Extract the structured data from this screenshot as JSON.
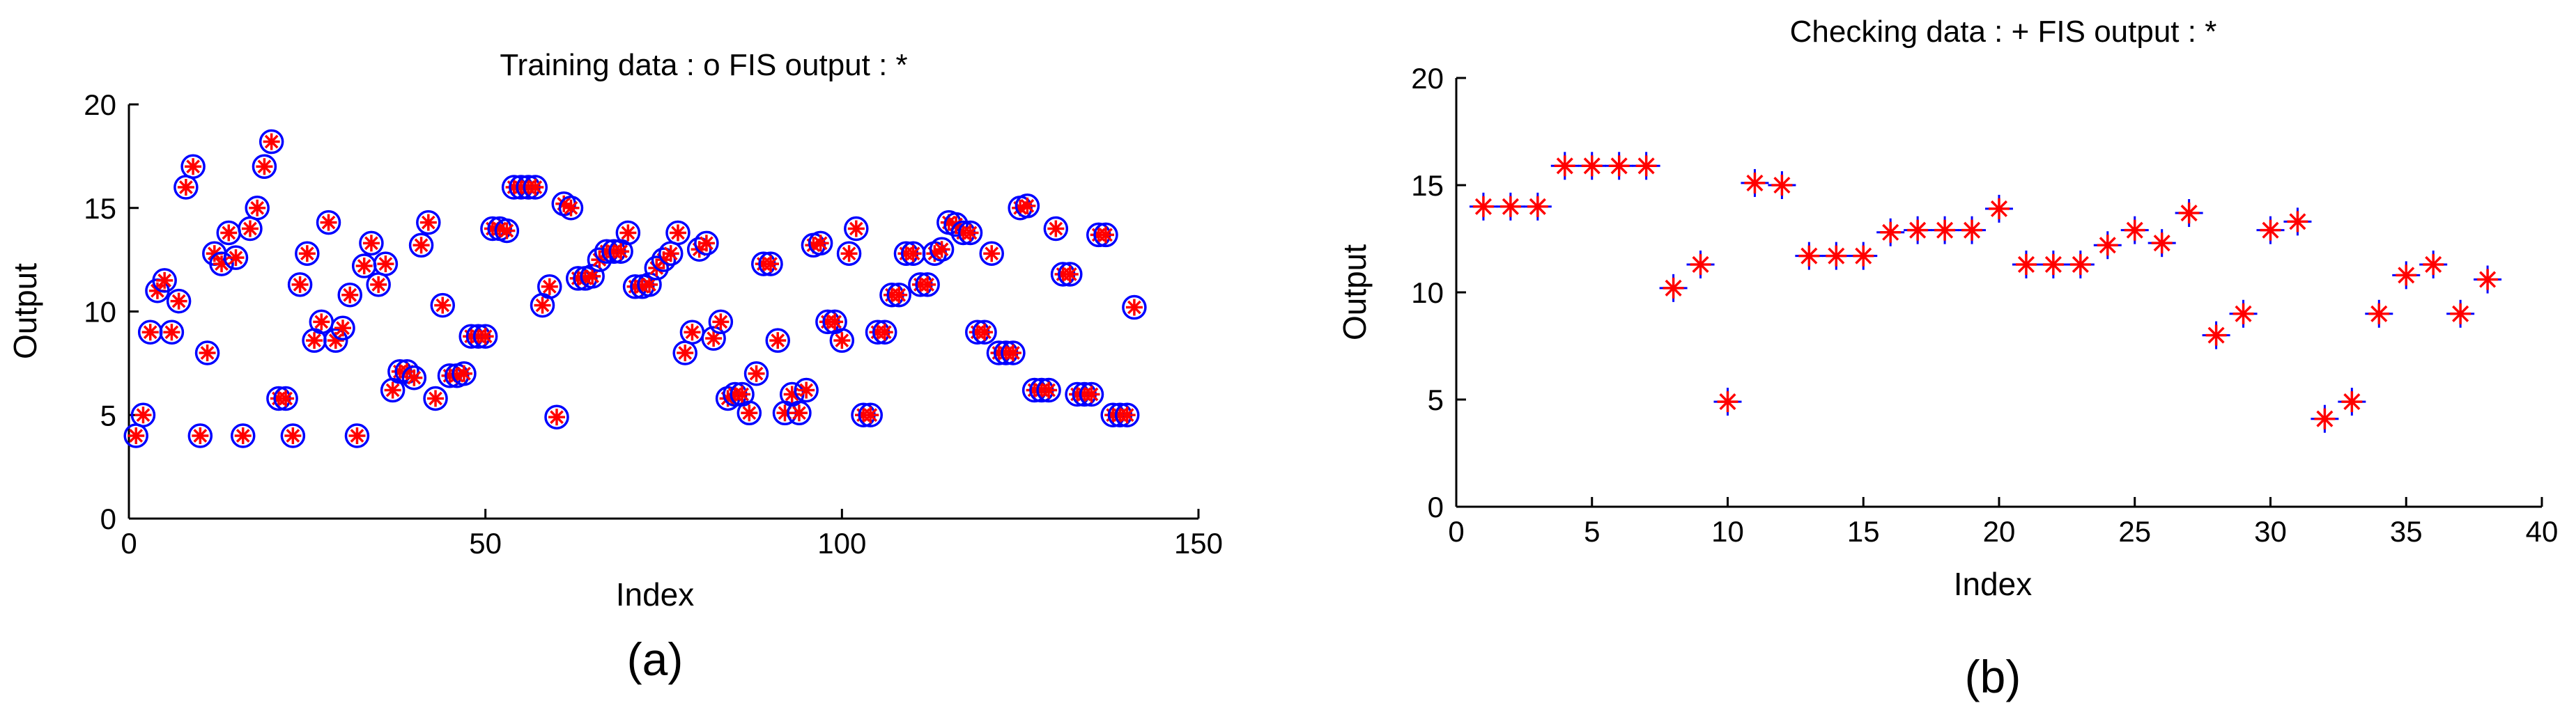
{
  "colors": {
    "training_marker": "#0000ff",
    "checking_marker": "#0000ff",
    "fis_marker": "#ff0000",
    "axis": "#000000",
    "background": "#ffffff"
  },
  "chart_data": [
    {
      "type": "scatter",
      "title": "Training data : o   FIS output : *",
      "xlabel": "Index",
      "ylabel": "Output",
      "caption": "(a)",
      "xlim": [
        0,
        150
      ],
      "ylim": [
        0,
        20
      ],
      "xticks": [
        "0",
        "50",
        "100",
        "150"
      ],
      "yticks": [
        "0",
        "5",
        "10",
        "15",
        "20"
      ],
      "grid": false,
      "series": [
        {
          "name": "Training data",
          "marker": "o"
        },
        {
          "name": "FIS output",
          "marker": "*"
        }
      ],
      "x": [
        1,
        2,
        3,
        4,
        5,
        6,
        7,
        8,
        9,
        10,
        11,
        12,
        13,
        14,
        15,
        16,
        17,
        18,
        19,
        20,
        21,
        22,
        23,
        24,
        25,
        26,
        27,
        28,
        29,
        30,
        31,
        32,
        33,
        34,
        35,
        36,
        37,
        38,
        39,
        40,
        41,
        42,
        43,
        44,
        45,
        46,
        47,
        48,
        49,
        50,
        51,
        52,
        53,
        54,
        55,
        56,
        57,
        58,
        59,
        60,
        61,
        62,
        63,
        64,
        65,
        66,
        67,
        68,
        69,
        70,
        71,
        72,
        73,
        74,
        75,
        76,
        77,
        78,
        79,
        80,
        81,
        82,
        83,
        84,
        85,
        86,
        87,
        88,
        89,
        90,
        91,
        92,
        93,
        94,
        95,
        96,
        97,
        98,
        99,
        100,
        101,
        102,
        103,
        104,
        105,
        106,
        107,
        108,
        109,
        110,
        111,
        112,
        113,
        114,
        115,
        116,
        117,
        118,
        119,
        120,
        121,
        122,
        123,
        124,
        125,
        126,
        127,
        128,
        129,
        130,
        131,
        132,
        133,
        134,
        135,
        136,
        137,
        138,
        139,
        140,
        141
      ],
      "y": [
        4,
        5,
        9,
        11,
        11.5,
        9,
        10.5,
        16,
        17,
        4,
        8,
        12.8,
        12.3,
        13.8,
        12.6,
        4,
        14,
        15,
        17,
        18.2,
        5.8,
        5.8,
        4,
        11.3,
        12.8,
        8.6,
        9.5,
        14.3,
        8.6,
        9.2,
        10.8,
        4,
        12.2,
        13.3,
        11.3,
        12.3,
        6.2,
        7.1,
        7.1,
        6.8,
        13.2,
        14.3,
        5.8,
        10.3,
        6.9,
        6.9,
        7,
        8.8,
        8.8,
        8.8,
        14,
        14,
        13.9,
        16,
        16,
        16,
        16,
        10.3,
        11.2,
        4.9,
        15.2,
        15,
        11.6,
        11.6,
        11.7,
        12.5,
        12.9,
        12.9,
        12.9,
        13.8,
        11.2,
        11.2,
        11.3,
        12.1,
        12.5,
        12.8,
        13.8,
        8,
        9,
        13,
        13.3,
        8.7,
        9.5,
        5.8,
        6,
        6,
        5.1,
        7,
        12.3,
        12.3,
        8.6,
        5.1,
        6,
        5.1,
        6.2,
        13.2,
        13.3,
        9.5,
        9.5,
        8.6,
        12.8,
        14,
        5,
        5,
        9,
        9,
        10.8,
        10.8,
        12.8,
        12.8,
        11.3,
        11.3,
        12.8,
        13,
        14.3,
        14.2,
        13.8,
        13.8,
        9,
        9,
        12.8,
        8,
        8,
        8,
        15,
        15.1,
        6.2,
        6.2,
        6.2,
        14,
        11.8,
        11.8,
        6,
        6,
        6,
        13.7,
        13.7,
        5,
        5,
        5,
        10.2
      ]
    },
    {
      "type": "scatter",
      "title": "Checking data : +   FIS output : *",
      "xlabel": "Index",
      "ylabel": "Output",
      "caption": "(b)",
      "xlim": [
        0,
        40
      ],
      "ylim": [
        0,
        20
      ],
      "xticks": [
        "0",
        "5",
        "10",
        "15",
        "20",
        "25",
        "30",
        "35",
        "40"
      ],
      "yticks": [
        "0",
        "5",
        "10",
        "15",
        "20"
      ],
      "grid": false,
      "series": [
        {
          "name": "Checking data",
          "marker": "+"
        },
        {
          "name": "FIS output",
          "marker": "*"
        }
      ],
      "x": [
        1,
        2,
        3,
        4,
        5,
        6,
        7,
        8,
        9,
        10,
        11,
        12,
        13,
        14,
        15,
        16,
        17,
        18,
        19,
        20,
        21,
        22,
        23,
        24,
        25,
        26,
        27,
        28,
        29,
        30,
        31,
        32,
        33,
        34,
        35,
        36,
        37,
        38
      ],
      "y": [
        14,
        14,
        14,
        15.9,
        15.9,
        15.9,
        15.9,
        10.2,
        11.3,
        4.9,
        15.1,
        15,
        11.7,
        11.7,
        11.7,
        12.8,
        12.9,
        12.9,
        12.9,
        13.9,
        11.3,
        11.3,
        11.3,
        12.2,
        12.9,
        12.3,
        13.7,
        8,
        9,
        12.9,
        13.3,
        4.1,
        4.9,
        9,
        10.8,
        11.3,
        9,
        10.6
      ]
    }
  ]
}
